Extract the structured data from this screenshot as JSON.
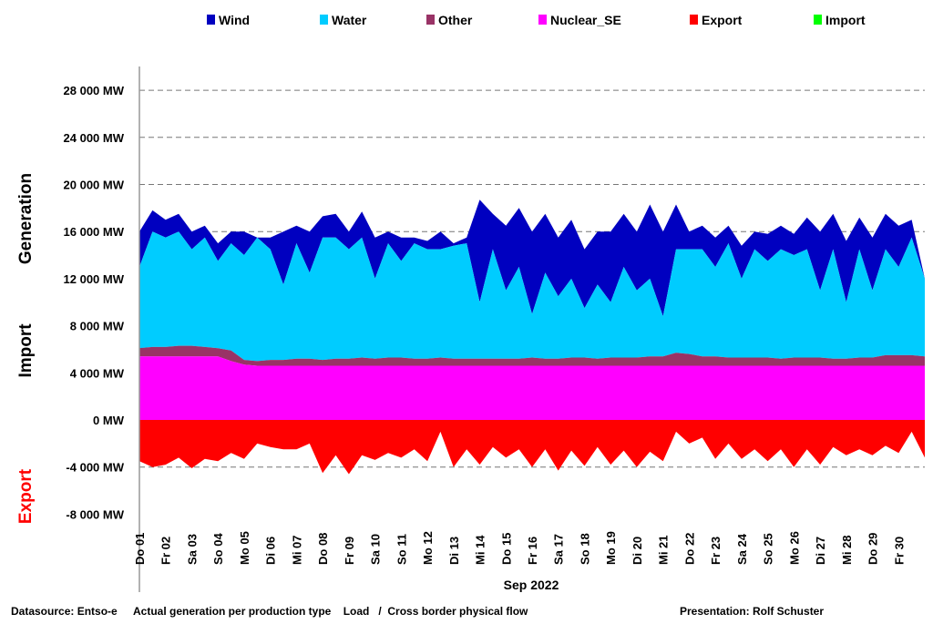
{
  "chart_data": {
    "type": "area",
    "title": "",
    "xlabel": "Sep 2022",
    "y_titles": {
      "generation": "Generation",
      "import": "Import",
      "export": "Export"
    },
    "ylim": [
      -8000,
      30000
    ],
    "yticks": [
      28000,
      24000,
      20000,
      16000,
      12000,
      8000,
      4000,
      0,
      -4000,
      -8000
    ],
    "ytick_labels": [
      "28 000 MW",
      "24 000 MW",
      "20 000 MW",
      "16 000 MW",
      "12 000 MW",
      "8 000 MW",
      "4 000 MW",
      "0 MW",
      "-4 000 MW",
      "-8 000 MW"
    ],
    "grid": "horizontal dashed",
    "legend_position": "top",
    "x_unit": "half-day samples from Sep 01 00:00 to Oct 01 00:00",
    "xtick_labels": [
      "Do 01",
      "Fr 02",
      "Sa 03",
      "So 04",
      "Mo 05",
      "Di 06",
      "Mi 07",
      "Do 08",
      "Fr 09",
      "Sa 10",
      "So 11",
      "Mo 12",
      "Di 13",
      "Mi 14",
      "Do 15",
      "Fr 16",
      "Sa 17",
      "So 18",
      "Mo 19",
      "Di 20",
      "Mi 21",
      "Do 22",
      "Fr 23",
      "Sa 24",
      "So 25",
      "Mo 26",
      "Di 27",
      "Mi 28",
      "Do 29",
      "Fr 30"
    ],
    "stacking": "values of Wind/Water/Other/Nuclear_SE are cumulative stack tops in MW",
    "series": [
      {
        "name": "Wind",
        "color": "#0000c0",
        "values": [
          16000,
          17800,
          17000,
          17500,
          16000,
          16500,
          15000,
          16000,
          16000,
          15500,
          15500,
          16000,
          16500,
          16000,
          17300,
          17500,
          16000,
          17700,
          15500,
          16000,
          15500,
          15500,
          15200,
          16000,
          15000,
          15500,
          18700,
          17500,
          16500,
          18000,
          16000,
          17500,
          15500,
          17000,
          14500,
          16000,
          16000,
          17500,
          16000,
          18300,
          16000,
          18300,
          16000,
          16500,
          15500,
          16500,
          14800,
          16000,
          15800,
          16500,
          15800,
          17200,
          16000,
          17500,
          15200,
          17200,
          15500,
          17500,
          16500,
          17000,
          12000
        ]
      },
      {
        "name": "Water",
        "color": "#00ccff",
        "values": [
          13000,
          16000,
          15500,
          16000,
          14500,
          15500,
          13500,
          15000,
          14000,
          15500,
          14500,
          11500,
          15000,
          12500,
          15500,
          15500,
          14500,
          15500,
          12000,
          15000,
          13500,
          15000,
          14500,
          14500,
          14800,
          15000,
          10000,
          14500,
          11000,
          13000,
          9000,
          12500,
          10500,
          12000,
          9500,
          11500,
          10000,
          13000,
          11000,
          12000,
          8800,
          14500,
          14500,
          14500,
          13000,
          15000,
          12000,
          14500,
          13500,
          14500,
          14000,
          14500,
          11000,
          14500,
          10000,
          14500,
          11000,
          14500,
          13000,
          15500,
          12000
        ]
      },
      {
        "name": "Other",
        "color": "#993366",
        "values": [
          6100,
          6200,
          6200,
          6300,
          6300,
          6200,
          6100,
          5900,
          5100,
          5000,
          5100,
          5100,
          5200,
          5200,
          5100,
          5200,
          5200,
          5300,
          5200,
          5300,
          5300,
          5200,
          5200,
          5300,
          5200,
          5200,
          5200,
          5200,
          5200,
          5200,
          5300,
          5200,
          5200,
          5300,
          5300,
          5200,
          5300,
          5300,
          5300,
          5400,
          5400,
          5700,
          5600,
          5400,
          5400,
          5300,
          5300,
          5300,
          5300,
          5200,
          5300,
          5300,
          5300,
          5200,
          5200,
          5300,
          5300,
          5500,
          5500,
          5500,
          5400
        ]
      },
      {
        "name": "Nuclear_SE",
        "color": "#ff00ff",
        "values": [
          5400,
          5400,
          5400,
          5400,
          5400,
          5400,
          5400,
          5000,
          4700,
          4600,
          4600,
          4600,
          4600,
          4600,
          4600,
          4600,
          4600,
          4600,
          4600,
          4600,
          4600,
          4600,
          4600,
          4600,
          4600,
          4600,
          4600,
          4600,
          4600,
          4600,
          4600,
          4600,
          4600,
          4600,
          4600,
          4600,
          4600,
          4600,
          4600,
          4600,
          4600,
          4600,
          4600,
          4600,
          4600,
          4600,
          4600,
          4600,
          4600,
          4600,
          4600,
          4600,
          4600,
          4600,
          4600,
          4600,
          4600,
          4600,
          4600,
          4600,
          4600
        ]
      },
      {
        "name": "Export",
        "color": "#ff0000",
        "values": [
          -3500,
          -4000,
          -3800,
          -3200,
          -4100,
          -3300,
          -3500,
          -2800,
          -3300,
          -2000,
          -2300,
          -2500,
          -2500,
          -2000,
          -4500,
          -3000,
          -4600,
          -3000,
          -3400,
          -2800,
          -3200,
          -2500,
          -3500,
          -1000,
          -4000,
          -2500,
          -3800,
          -2300,
          -3200,
          -2500,
          -4000,
          -2500,
          -4300,
          -2600,
          -3900,
          -2300,
          -3800,
          -2600,
          -4000,
          -2700,
          -3500,
          -1000,
          -2000,
          -1500,
          -3300,
          -2000,
          -3300,
          -2500,
          -3500,
          -2500,
          -4000,
          -2500,
          -3800,
          -2300,
          -3000,
          -2500,
          -3000,
          -2200,
          -2800,
          -1000,
          -3200
        ]
      },
      {
        "name": "Import",
        "color": "#00ff00",
        "values": []
      }
    ]
  },
  "footer": {
    "source_label": "Datasource: Entso-e",
    "source_detail": "Actual generation per production type    Load   /  Cross border physical flow",
    "presentation": "Presentation: Rolf Schuster"
  }
}
